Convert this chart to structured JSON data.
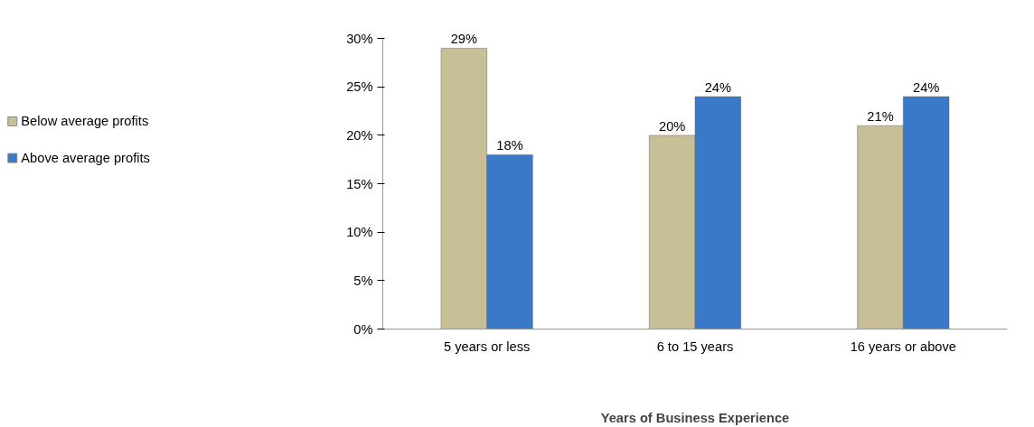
{
  "chart_data": {
    "type": "bar",
    "xlabel": "Years of Business Experience",
    "categories": [
      "5 years or less",
      "6 to 15 years",
      "16 years or above"
    ],
    "series": [
      {
        "name": "Below average profits",
        "color": "#c9bf96",
        "values": [
          29,
          20,
          21
        ],
        "value_labels": [
          "29%",
          "20%",
          "21%"
        ]
      },
      {
        "name": "Above average profits",
        "color": "#3a78c8",
        "values": [
          18,
          24,
          24
        ],
        "value_labels": [
          "18%",
          "24%",
          "24%"
        ]
      }
    ],
    "ylim": [
      0,
      30
    ],
    "yticks": [
      {
        "value": 0,
        "label": "0%"
      },
      {
        "value": 5,
        "label": "5%"
      },
      {
        "value": 10,
        "label": "10%"
      },
      {
        "value": 15,
        "label": "15%"
      },
      {
        "value": 20,
        "label": "20%"
      },
      {
        "value": 25,
        "label": "25%"
      },
      {
        "value": 30,
        "label": "30%"
      }
    ],
    "grid": false,
    "legend": "left"
  }
}
